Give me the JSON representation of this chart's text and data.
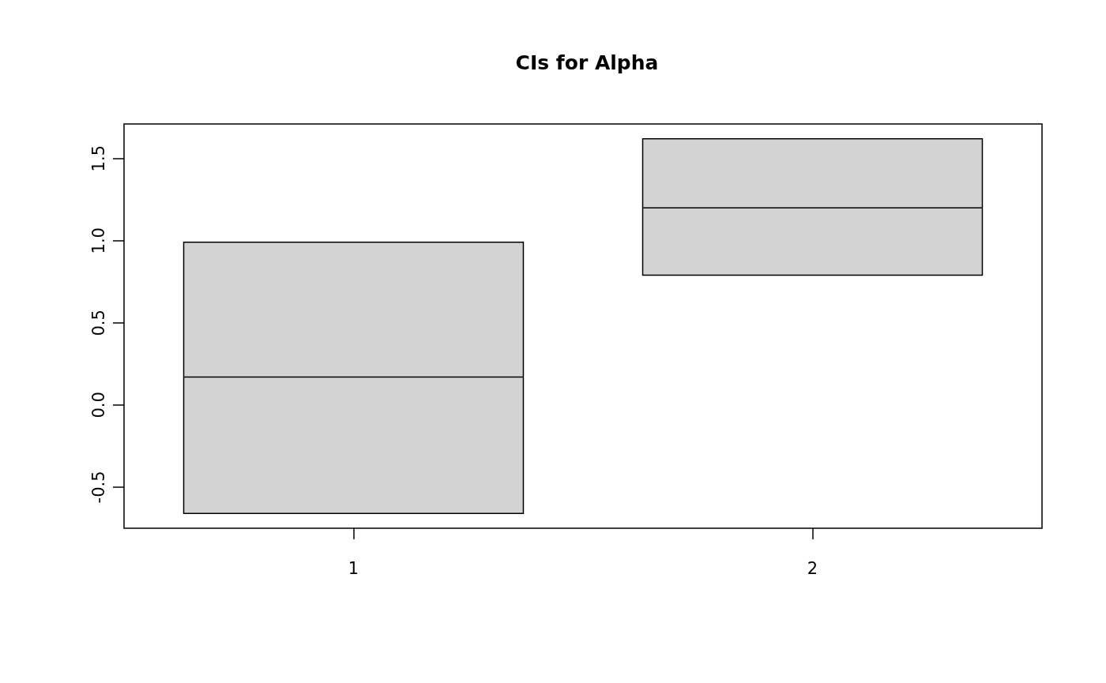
{
  "chart_data": {
    "type": "box",
    "title": "CIs for Alpha",
    "categories": [
      "1",
      "2"
    ],
    "boxes": [
      {
        "low": -0.66,
        "q1": -0.66,
        "median": 0.17,
        "q3": 0.99,
        "high": 0.99
      },
      {
        "low": 0.79,
        "q1": 0.79,
        "median": 1.2,
        "q3": 1.62,
        "high": 1.62
      }
    ],
    "color": "#d3d3d3",
    "ylim": [
      -0.75,
      1.71
    ],
    "yticks": [
      -0.5,
      {
        "value": 0,
        "label": "0.0"
      },
      0.5,
      {
        "value": 1,
        "label": "1.0"
      },
      1.5
    ]
  }
}
